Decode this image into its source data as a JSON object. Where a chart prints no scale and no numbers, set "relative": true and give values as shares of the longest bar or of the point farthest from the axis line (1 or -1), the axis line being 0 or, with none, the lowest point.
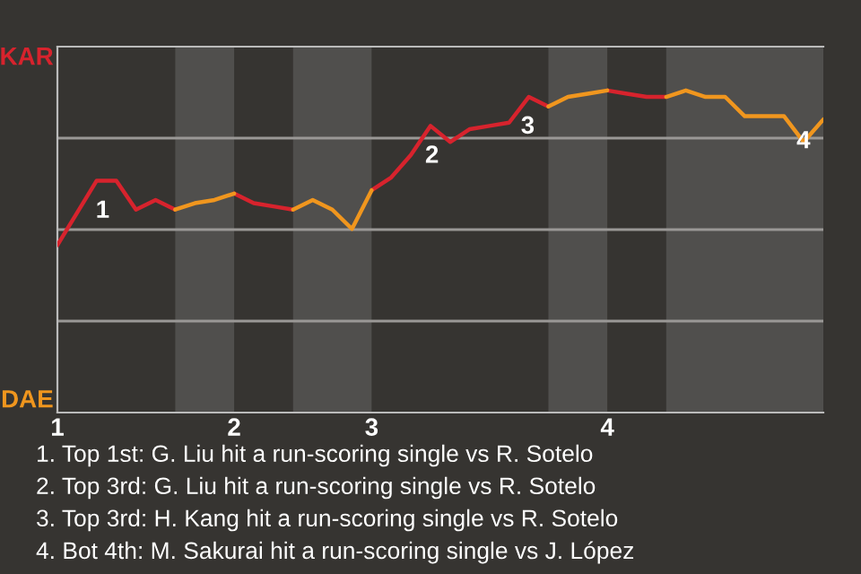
{
  "chart_data": {
    "type": "line",
    "relative": true,
    "categories": [
      "1",
      null,
      null,
      null,
      null,
      null,
      null,
      null,
      null,
      "2",
      null,
      null,
      null,
      null,
      null,
      null,
      "3",
      null,
      null,
      null,
      null,
      null,
      null,
      null,
      null,
      null,
      null,
      null,
      "4",
      null,
      null,
      null,
      null,
      null,
      null,
      null,
      null,
      null,
      null,
      null
    ],
    "series": [
      {
        "color": "#d7232d",
        "values": [
          0.52,
          0.62,
          0.72,
          0.72,
          0.63,
          0.66,
          0.63,
          null,
          null,
          0.68,
          0.65,
          0.64,
          0.63,
          null,
          null,
          null,
          0.69,
          0.73,
          0.8,
          0.89,
          0.84,
          0.88,
          0.89,
          0.9,
          0.98,
          0.95,
          null,
          null,
          1,
          0.99,
          0.98,
          0.98,
          null,
          null,
          null,
          null,
          null,
          null,
          null,
          null
        ]
      },
      {
        "color": "#f0961e",
        "values": [
          null,
          null,
          null,
          null,
          null,
          null,
          0.63,
          0.65,
          0.66,
          0.68,
          null,
          null,
          0.63,
          0.66,
          0.63,
          0.57,
          0.69,
          null,
          null,
          null,
          null,
          null,
          null,
          null,
          null,
          0.95,
          0.98,
          0.99,
          1,
          null,
          null,
          0.98,
          1,
          0.98,
          0.98,
          0.92,
          0.92,
          0.92,
          0.84,
          0.91
        ]
      }
    ],
    "grid": "y",
    "marker": "none",
    "line_style": "solid",
    "annotations": [
      "KAR",
      "DAE",
      "1",
      "2",
      "3",
      "4",
      "1. Top 1st: G. Liu hit a run-scoring single vs R. Sotelo",
      "2. Top 3rd: G. Liu hit a run-scoring single vs R. Sotelo",
      "3. Top 3rd: H. Kang hit a run-scoring single vs R. Sotelo",
      "4. Bot 4th: M. Sakurai hit a run-scoring single vs J. López"
    ]
  }
}
